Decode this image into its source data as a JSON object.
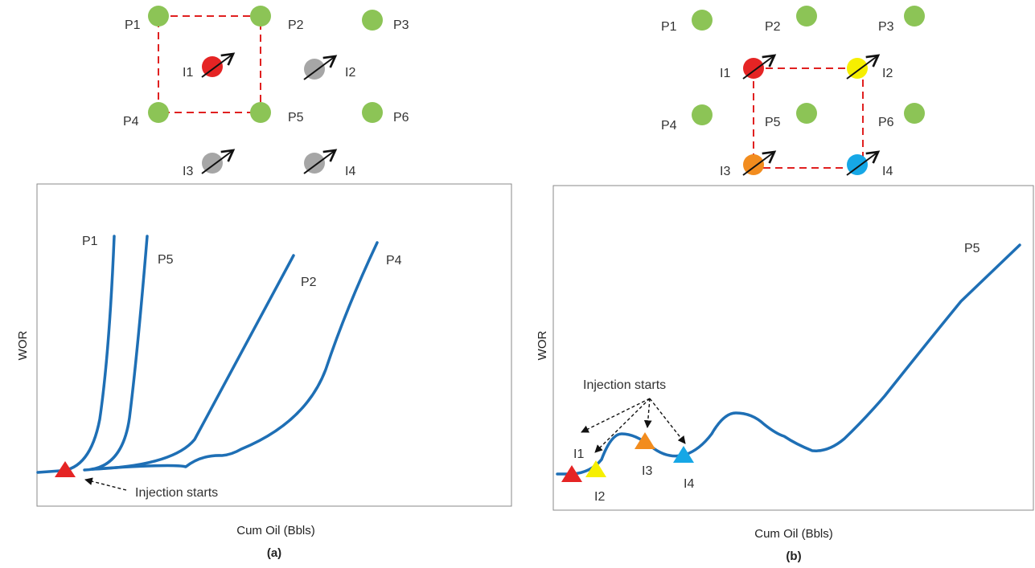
{
  "colors": {
    "producer": "#8cc456",
    "curve": "#1e6fb5",
    "red": "#e52424",
    "yellow": "#f6ef00",
    "orange": "#f28c1e",
    "blue": "#16a7e6",
    "inactive": "#a6a6a6",
    "pattern": "#e02020"
  },
  "panel_a": {
    "wells": {
      "P1": "P1",
      "P2": "P2",
      "P3": "P3",
      "P4": "P4",
      "P5": "P5",
      "P6": "P6",
      "I1": "I1",
      "I2": "I2",
      "I3": "I3",
      "I4": "I4"
    },
    "curve_labels": {
      "P1": "P1",
      "P5": "P5",
      "P2": "P2",
      "P4": "P4"
    },
    "ylabel": "WOR",
    "xlabel": "Cum Oil (Bbls)",
    "annotation": "Injection starts",
    "caption": "(a)"
  },
  "panel_b": {
    "wells": {
      "P1": "P1",
      "P2": "P2",
      "P3": "P3",
      "P4": "P4",
      "P5": "P5",
      "P6": "P6",
      "I1": "I1",
      "I2": "I2",
      "I3": "I3",
      "I4": "I4"
    },
    "curve_labels": {
      "P5": "P5"
    },
    "markers": {
      "I1": "I1",
      "I2": "I2",
      "I3": "I3",
      "I4": "I4"
    },
    "ylabel": "WOR",
    "xlabel": "Cum Oil (Bbls)",
    "annotation": "Injection starts",
    "caption": "(b)"
  }
}
